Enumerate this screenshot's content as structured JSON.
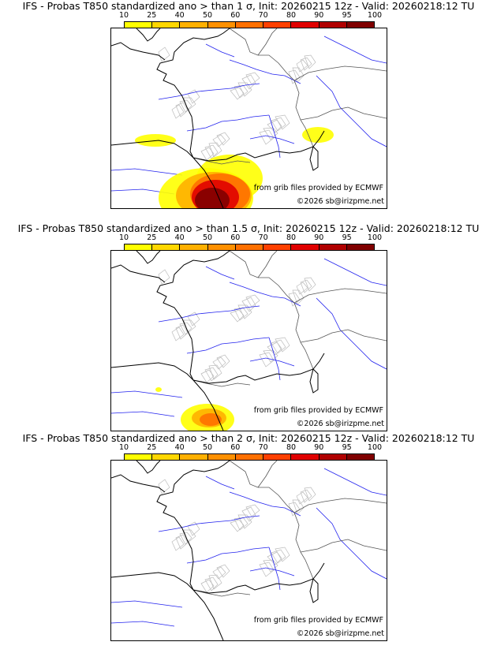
{
  "legend": {
    "ticks": [
      "10",
      "25",
      "40",
      "50",
      "60",
      "70",
      "80",
      "90",
      "95",
      "100"
    ],
    "colors": [
      "#ffff00",
      "#ffd700",
      "#ffb000",
      "#ff9000",
      "#ff7000",
      "#ff4000",
      "#e00000",
      "#b00000",
      "#800000"
    ]
  },
  "panels": [
    {
      "title": "IFS - Probas T850  standardized ano > than 1 σ, Init: 20260215 12z - Valid: 20260218:12 TU",
      "intensity": 3
    },
    {
      "title": "IFS - Probas T850  standardized ano > than 1.5 σ, Init: 20260215 12z - Valid: 20260218:12 TU",
      "intensity": 2
    },
    {
      "title": "IFS - Probas T850  standardized ano > than 2 σ, Init: 20260215 12z - Valid: 20260218:12 TU",
      "intensity": 1
    }
  ],
  "credits": {
    "source": "from grib files provided by ECMWF",
    "copyright": "©2026 sb@irizpme.net"
  }
}
